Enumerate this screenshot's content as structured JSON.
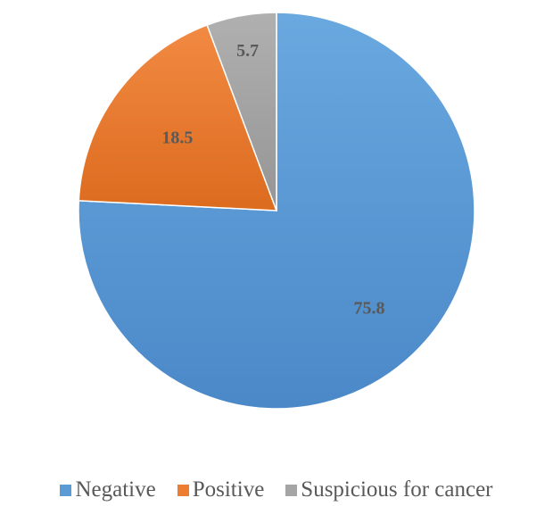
{
  "chart_data": {
    "type": "pie",
    "title": "",
    "categories": [
      "Negative",
      "Positive",
      "Suspicious for cancer"
    ],
    "values": [
      75.8,
      18.5,
      5.7
    ],
    "data_labels": [
      "75.8",
      "18.5",
      "5.7"
    ],
    "colors": [
      "#5B9BD5",
      "#ED7D31",
      "#A5A5A5"
    ],
    "start": "12 o'clock",
    "direction": "clockwise",
    "legend": {
      "placement": "bottom"
    }
  }
}
